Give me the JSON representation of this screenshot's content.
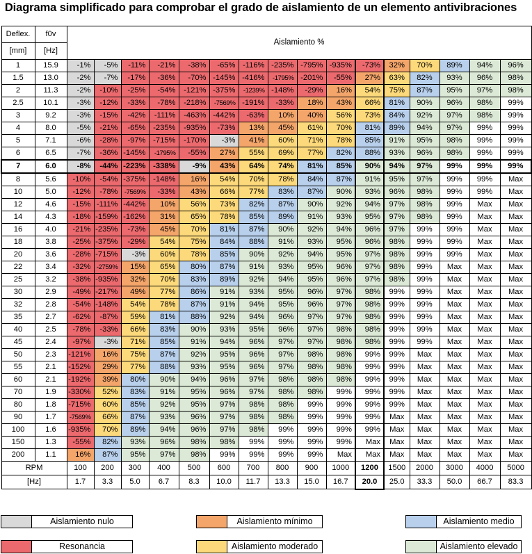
{
  "title": "Diagrama simplificado para comprobar el grado de aislamiento de un elemento antivibraciones",
  "colors": {
    "nulo": "#d9d9d9",
    "resonancia": "#ec6a6e",
    "minimo": "#f4a56a",
    "moderado": "#fcd97a",
    "medio": "#b8d0ec",
    "elevado": "#dce9d6",
    "none": "#ffffff"
  },
  "header": {
    "deflex": "Deflex.",
    "mm": "[mm]",
    "f0v": "f0v",
    "hz": "[Hz]",
    "aislamiento": "Aislamiento %"
  },
  "footer": {
    "rpm_label": "RPM",
    "hz_label": "[Hz]"
  },
  "legend": [
    {
      "key": "nulo",
      "label": "Aislamiento nulo"
    },
    {
      "key": "minimo",
      "label": "Aislamiento mínimo"
    },
    {
      "key": "medio",
      "label": "Aislamiento medio"
    },
    {
      "key": "resonancia",
      "label": "Resonancia"
    },
    {
      "key": "moderado",
      "label": "Aislamiento moderado"
    },
    {
      "key": "elevado",
      "label": "Aislamiento elevado"
    }
  ],
  "chart_data": {
    "type": "table",
    "title": "Diagrama simplificado para comprobar el grado de aislamiento de un elemento antivibraciones",
    "rpm": [
      "100",
      "200",
      "300",
      "400",
      "500",
      "600",
      "700",
      "800",
      "900",
      "1000",
      "1200",
      "1500",
      "2000",
      "3000",
      "4000",
      "5000"
    ],
    "hz": [
      "1.7",
      "3.3",
      "5.0",
      "6.7",
      "8.3",
      "10.0",
      "11.7",
      "13.3",
      "15.0",
      "16.7",
      "20.0",
      "25.0",
      "33.3",
      "50.0",
      "66.7",
      "83.3"
    ],
    "selected_row": 8,
    "selected_col": 10,
    "rows": [
      {
        "deflex": "1",
        "f0v": "15.9",
        "values": [
          "-1%",
          "-5%",
          "-11%",
          "-21%",
          "-38%",
          "-65%",
          "-116%",
          "-235%",
          "-795%",
          "-935%",
          "-73%",
          "32%",
          "70%",
          "89%",
          "94%",
          "96%"
        ]
      },
      {
        "deflex": "1.5",
        "f0v": "13.0",
        "values": [
          "-2%",
          "-7%",
          "-17%",
          "-36%",
          "-70%",
          "-145%",
          "-416%",
          "-1795%",
          "-201%",
          "-55%",
          "27%",
          "63%",
          "82%",
          "93%",
          "96%",
          "98%"
        ]
      },
      {
        "deflex": "2",
        "f0v": "11.3",
        "values": [
          "-2%",
          "-10%",
          "-25%",
          "-54%",
          "-121%",
          "-375%",
          "-1239%",
          "-148%",
          "-29%",
          "16%",
          "54%",
          "75%",
          "87%",
          "95%",
          "97%",
          "98%"
        ]
      },
      {
        "deflex": "2.5",
        "f0v": "10.1",
        "values": [
          "-3%",
          "-12%",
          "-33%",
          "-78%",
          "-218%",
          "-7569%",
          "-191%",
          "-33%",
          "18%",
          "43%",
          "66%",
          "81%",
          "90%",
          "96%",
          "98%",
          "99%"
        ]
      },
      {
        "deflex": "3",
        "f0v": "9.2",
        "values": [
          "-3%",
          "-15%",
          "-42%",
          "-111%",
          "-463%",
          "-442%",
          "-63%",
          "10%",
          "40%",
          "56%",
          "73%",
          "84%",
          "92%",
          "97%",
          "98%",
          "99%"
        ]
      },
      {
        "deflex": "4",
        "f0v": "8.0",
        "values": [
          "-5%",
          "-21%",
          "-65%",
          "-235%",
          "-935%",
          "-73%",
          "13%",
          "45%",
          "61%",
          "70%",
          "81%",
          "89%",
          "94%",
          "97%",
          "99%",
          "99%"
        ]
      },
      {
        "deflex": "5",
        "f0v": "7.1",
        "values": [
          "-6%",
          "-28%",
          "-97%",
          "-715%",
          "-170%",
          "-3%",
          "41%",
          "60%",
          "71%",
          "78%",
          "85%",
          "91%",
          "95%",
          "98%",
          "99%",
          "99%"
        ]
      },
      {
        "deflex": "6",
        "f0v": "6.5",
        "values": [
          "-7%",
          "-36%",
          "-145%",
          "-1795%",
          "-55%",
          "27%",
          "55%",
          "69%",
          "77%",
          "82%",
          "88%",
          "93%",
          "96%",
          "98%",
          "99%",
          "99%"
        ]
      },
      {
        "deflex": "7",
        "f0v": "6.0",
        "values": [
          "-8%",
          "-44%",
          "-223%",
          "-338%",
          "-9%",
          "43%",
          "64%",
          "74%",
          "81%",
          "85%",
          "90%",
          "94%",
          "97%",
          "99%",
          "99%",
          "99%"
        ]
      },
      {
        "deflex": "8",
        "f0v": "5.6",
        "values": [
          "-10%",
          "-54%",
          "-375%",
          "-148%",
          "16%",
          "54%",
          "70%",
          "78%",
          "84%",
          "87%",
          "91%",
          "95%",
          "97%",
          "99%",
          "99%",
          "Max"
        ]
      },
      {
        "deflex": "10",
        "f0v": "5.0",
        "values": [
          "-12%",
          "-78%",
          "-7569%",
          "-33%",
          "43%",
          "66%",
          "77%",
          "83%",
          "87%",
          "90%",
          "93%",
          "96%",
          "98%",
          "99%",
          "99%",
          "Max"
        ]
      },
      {
        "deflex": "12",
        "f0v": "4.6",
        "values": [
          "-15%",
          "-111%",
          "-442%",
          "10%",
          "56%",
          "73%",
          "82%",
          "87%",
          "90%",
          "92%",
          "94%",
          "97%",
          "98%",
          "99%",
          "Max",
          "Max"
        ]
      },
      {
        "deflex": "14",
        "f0v": "4.3",
        "values": [
          "-18%",
          "-159%",
          "-162%",
          "31%",
          "65%",
          "78%",
          "85%",
          "89%",
          "91%",
          "93%",
          "95%",
          "97%",
          "98%",
          "99%",
          "Max",
          "Max"
        ]
      },
      {
        "deflex": "16",
        "f0v": "4.0",
        "values": [
          "-21%",
          "-235%",
          "-73%",
          "45%",
          "70%",
          "81%",
          "87%",
          "90%",
          "92%",
          "94%",
          "96%",
          "97%",
          "99%",
          "99%",
          "Max",
          "Max"
        ]
      },
      {
        "deflex": "18",
        "f0v": "3.8",
        "values": [
          "-25%",
          "-375%",
          "-29%",
          "54%",
          "75%",
          "84%",
          "88%",
          "91%",
          "93%",
          "95%",
          "96%",
          "98%",
          "99%",
          "99%",
          "Max",
          "Max"
        ]
      },
      {
        "deflex": "20",
        "f0v": "3.6",
        "values": [
          "-28%",
          "-715%",
          "-3%",
          "60%",
          "78%",
          "85%",
          "90%",
          "92%",
          "94%",
          "95%",
          "97%",
          "98%",
          "99%",
          "99%",
          "Max",
          "Max"
        ]
      },
      {
        "deflex": "22",
        "f0v": "3.4",
        "values": [
          "-32%",
          "-2759%",
          "15%",
          "65%",
          "80%",
          "87%",
          "91%",
          "93%",
          "95%",
          "96%",
          "97%",
          "98%",
          "99%",
          "Max",
          "Max",
          "Max"
        ]
      },
      {
        "deflex": "25",
        "f0v": "3.2",
        "values": [
          "-38%",
          "-935%",
          "32%",
          "70%",
          "83%",
          "89%",
          "92%",
          "94%",
          "95%",
          "96%",
          "97%",
          "98%",
          "99%",
          "Max",
          "Max",
          "Max"
        ]
      },
      {
        "deflex": "30",
        "f0v": "2.9",
        "values": [
          "-49%",
          "-217%",
          "49%",
          "77%",
          "86%",
          "91%",
          "93%",
          "95%",
          "96%",
          "97%",
          "98%",
          "99%",
          "99%",
          "Max",
          "Max",
          "Max"
        ]
      },
      {
        "deflex": "32",
        "f0v": "2.8",
        "values": [
          "-54%",
          "-148%",
          "54%",
          "78%",
          "87%",
          "91%",
          "94%",
          "95%",
          "96%",
          "97%",
          "98%",
          "99%",
          "99%",
          "Max",
          "Max",
          "Max"
        ]
      },
      {
        "deflex": "35",
        "f0v": "2.7",
        "values": [
          "-62%",
          "-87%",
          "59%",
          "81%",
          "88%",
          "92%",
          "94%",
          "96%",
          "97%",
          "97%",
          "98%",
          "99%",
          "99%",
          "Max",
          "Max",
          "Max"
        ]
      },
      {
        "deflex": "40",
        "f0v": "2.5",
        "values": [
          "-78%",
          "-33%",
          "66%",
          "83%",
          "90%",
          "93%",
          "95%",
          "96%",
          "97%",
          "98%",
          "98%",
          "99%",
          "99%",
          "Max",
          "Max",
          "Max"
        ]
      },
      {
        "deflex": "45",
        "f0v": "2.4",
        "values": [
          "-97%",
          "-3%",
          "71%",
          "85%",
          "91%",
          "94%",
          "96%",
          "97%",
          "97%",
          "98%",
          "98%",
          "99%",
          "99%",
          "Max",
          "Max",
          "Max"
        ]
      },
      {
        "deflex": "50",
        "f0v": "2.3",
        "values": [
          "-121%",
          "16%",
          "75%",
          "87%",
          "92%",
          "95%",
          "96%",
          "97%",
          "98%",
          "98%",
          "99%",
          "99%",
          "Max",
          "Max",
          "Max",
          "Max"
        ]
      },
      {
        "deflex": "55",
        "f0v": "2.1",
        "values": [
          "-152%",
          "29%",
          "77%",
          "88%",
          "93%",
          "95%",
          "96%",
          "97%",
          "98%",
          "98%",
          "99%",
          "99%",
          "Max",
          "Max",
          "Max",
          "Max"
        ]
      },
      {
        "deflex": "60",
        "f0v": "2.1",
        "values": [
          "-192%",
          "39%",
          "80%",
          "90%",
          "94%",
          "96%",
          "97%",
          "98%",
          "98%",
          "98%",
          "99%",
          "99%",
          "Max",
          "Max",
          "Max",
          "Max"
        ]
      },
      {
        "deflex": "70",
        "f0v": "1.9",
        "values": [
          "-330%",
          "52%",
          "83%",
          "91%",
          "95%",
          "96%",
          "97%",
          "98%",
          "98%",
          "99%",
          "99%",
          "99%",
          "Max",
          "Max",
          "Max",
          "Max"
        ]
      },
      {
        "deflex": "80",
        "f0v": "1.8",
        "values": [
          "-715%",
          "60%",
          "85%",
          "92%",
          "95%",
          "97%",
          "98%",
          "98%",
          "99%",
          "99%",
          "99%",
          "99%",
          "Max",
          "Max",
          "Max",
          "Max"
        ]
      },
      {
        "deflex": "90",
        "f0v": "1.7",
        "values": [
          "-7569%",
          "66%",
          "87%",
          "93%",
          "96%",
          "97%",
          "98%",
          "98%",
          "99%",
          "99%",
          "99%",
          "Max",
          "Max",
          "Max",
          "Max",
          "Max"
        ]
      },
      {
        "deflex": "100",
        "f0v": "1.6",
        "values": [
          "-935%",
          "70%",
          "89%",
          "94%",
          "96%",
          "97%",
          "98%",
          "99%",
          "99%",
          "99%",
          "99%",
          "Max",
          "Max",
          "Max",
          "Max",
          "Max"
        ]
      },
      {
        "deflex": "150",
        "f0v": "1.3",
        "values": [
          "-55%",
          "82%",
          "93%",
          "96%",
          "98%",
          "98%",
          "99%",
          "99%",
          "99%",
          "99%",
          "Max",
          "Max",
          "Max",
          "Max",
          "Max",
          "Max"
        ]
      },
      {
        "deflex": "200",
        "f0v": "1.1",
        "values": [
          "16%",
          "87%",
          "95%",
          "97%",
          "98%",
          "99%",
          "99%",
          "99%",
          "99%",
          "Max",
          "Max",
          "Max",
          "Max",
          "Max",
          "Max",
          "Max"
        ]
      }
    ]
  }
}
